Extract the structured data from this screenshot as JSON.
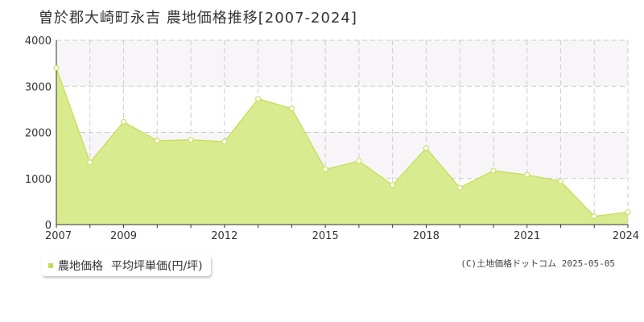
{
  "title": "曽於郡大崎町永吉 農地価格推移[2007-2024]",
  "legend": {
    "label": "農地価格",
    "unit": "平均坪単価(円/坪)"
  },
  "copyright": "(C)土地価格ドットコム 2025-05-05",
  "colors": {
    "fill": "#d9eb8f",
    "line": "#c5dc52",
    "grid": "#cccccc",
    "band": "#f7f5f8"
  },
  "chart_data": {
    "type": "area",
    "x": [
      2007,
      2008,
      2009,
      2010,
      2011,
      2012,
      2013,
      2014,
      2015,
      2016,
      2017,
      2018,
      2019,
      2020,
      2021,
      2022,
      2023,
      2024
    ],
    "series": [
      {
        "name": "農地価格",
        "values": [
          3400,
          1350,
          2230,
          1820,
          1840,
          1800,
          2730,
          2520,
          1200,
          1380,
          860,
          1660,
          800,
          1170,
          1080,
          940,
          180,
          270
        ]
      }
    ],
    "ylim": [
      0,
      4000
    ],
    "yticks": [
      0,
      1000,
      2000,
      3000,
      4000
    ],
    "xticks": [
      2007,
      2009,
      2012,
      2015,
      2018,
      2021,
      2024
    ],
    "grid": true
  }
}
